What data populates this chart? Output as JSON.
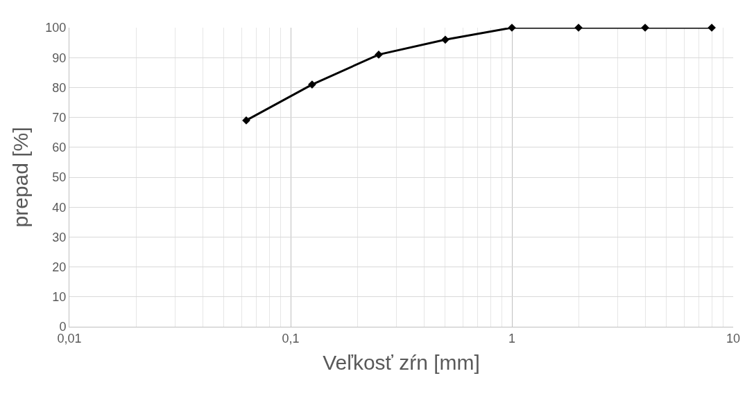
{
  "chart_data": {
    "type": "line",
    "xlabel": "Veľkosť zŕn [mm]",
    "ylabel": "prepad [%]",
    "x": [
      0.063,
      0.125,
      0.25,
      0.5,
      1,
      2,
      4,
      8
    ],
    "series": [
      {
        "color": "#000000",
        "values": [
          69,
          81,
          91,
          96,
          100,
          100,
          100,
          100
        ]
      }
    ],
    "log": "x",
    "xlim": [
      0.01,
      10
    ],
    "xticks": [
      {
        "value": 0.01,
        "label": "0,01"
      },
      {
        "value": 0.1,
        "label": "0,1"
      },
      1,
      10
    ],
    "ylim": [
      0,
      100
    ],
    "yticks": [
      0,
      10,
      20,
      30,
      40,
      50,
      60,
      70,
      80,
      90,
      100
    ],
    "grid": true,
    "marker": "diamond",
    "line_style": "solid"
  }
}
